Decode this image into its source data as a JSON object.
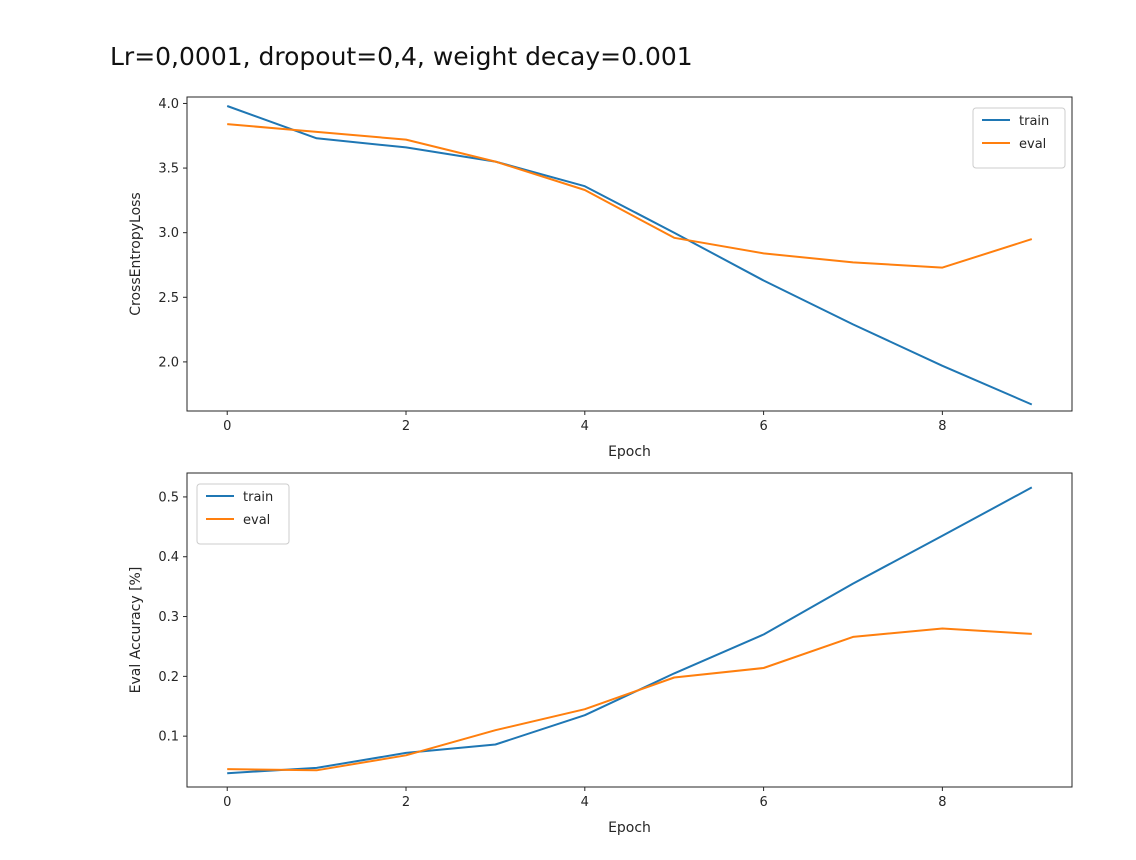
{
  "title": "Lr=0,0001, dropout=0,4, weight decay=0.001",
  "colors": {
    "train": "#1f77b4",
    "eval": "#ff7f0e",
    "axis": "#262626"
  },
  "chart_data": [
    {
      "type": "line",
      "xlabel": "Epoch",
      "ylabel": "CrossEntropyLoss",
      "xlim": [
        -0.45,
        9.45
      ],
      "ylim": [
        1.62,
        4.05
      ],
      "xticks": [
        0,
        2,
        4,
        6,
        8
      ],
      "xtick_labels": [
        "0",
        "2",
        "4",
        "6",
        "8"
      ],
      "yticks": [
        2.0,
        2.5,
        3.0,
        3.5,
        4.0
      ],
      "ytick_labels": [
        "2.0",
        "2.5",
        "3.0",
        "3.5",
        "4.0"
      ],
      "legend_position": "top-right",
      "x": [
        0,
        1,
        2,
        3,
        4,
        5,
        6,
        7,
        8,
        9
      ],
      "series": [
        {
          "name": "train",
          "values": [
            3.98,
            3.73,
            3.66,
            3.55,
            3.36,
            3.0,
            2.63,
            2.29,
            1.97,
            1.67
          ]
        },
        {
          "name": "eval",
          "values": [
            3.84,
            3.78,
            3.72,
            3.55,
            3.33,
            2.96,
            2.84,
            2.77,
            2.73,
            2.95
          ]
        }
      ]
    },
    {
      "type": "line",
      "xlabel": "Epoch",
      "ylabel": "Eval Accuracy [%]",
      "xlim": [
        -0.45,
        9.45
      ],
      "ylim": [
        0.015,
        0.54
      ],
      "xticks": [
        0,
        2,
        4,
        6,
        8
      ],
      "xtick_labels": [
        "0",
        "2",
        "4",
        "6",
        "8"
      ],
      "yticks": [
        0.1,
        0.2,
        0.3,
        0.4,
        0.5
      ],
      "ytick_labels": [
        "0.1",
        "0.2",
        "0.3",
        "0.4",
        "0.5"
      ],
      "legend_position": "top-left",
      "x": [
        0,
        1,
        2,
        3,
        4,
        5,
        6,
        7,
        8,
        9
      ],
      "series": [
        {
          "name": "train",
          "values": [
            0.038,
            0.047,
            0.072,
            0.086,
            0.135,
            0.205,
            0.27,
            0.355,
            0.435,
            0.516
          ]
        },
        {
          "name": "eval",
          "values": [
            0.045,
            0.043,
            0.068,
            0.11,
            0.145,
            0.198,
            0.214,
            0.266,
            0.28,
            0.271
          ]
        }
      ]
    }
  ]
}
